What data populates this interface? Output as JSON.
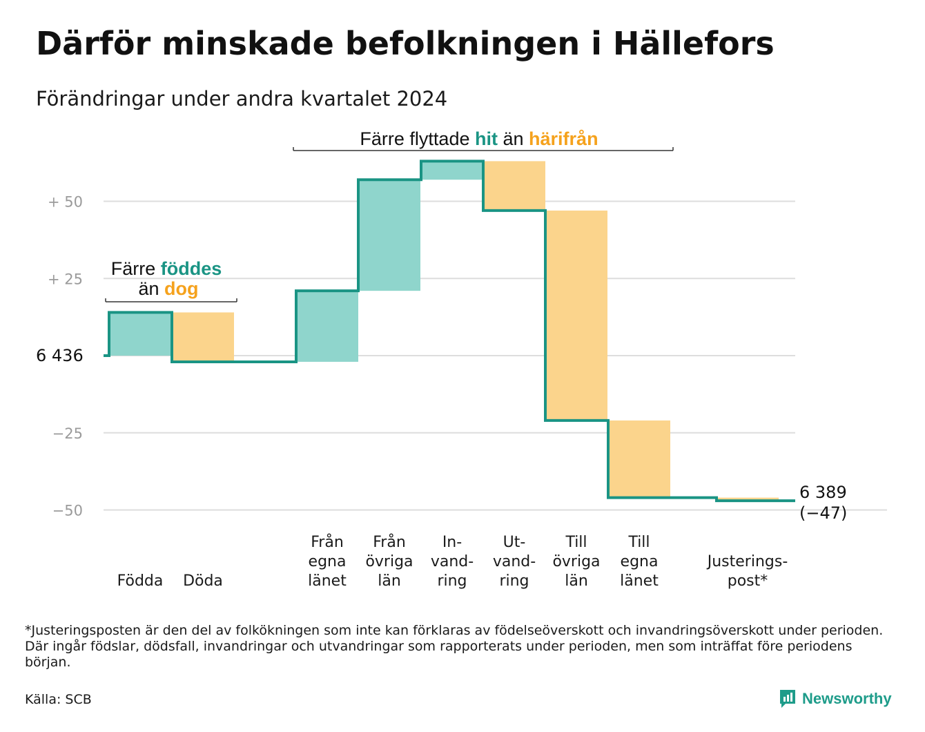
{
  "title": "Därför minskade befolkningen i Hällefors",
  "subtitle": "Förändringar under andra kvartalet 2024",
  "footnote": "*Justeringsposten är den del av folkökningen som inte kan förklaras av födelseöverskott och invandringsöverskott under perioden. Där ingår födslar, dödsfall, invandringar och utvandringar som rapporterats under perioden, men som inträffat före periodens början.",
  "source": "Källa: SCB",
  "brand": "Newsworthy",
  "chart_data": {
    "type": "bar",
    "subtype": "waterfall",
    "start_label": "6 436",
    "end_label": "6 389",
    "end_change_label": "(−47)",
    "start_value": 6436,
    "end_value": 6389,
    "change": -47,
    "ylim": [
      -50,
      60
    ],
    "y_ticks": [
      50,
      25,
      0,
      -25,
      -50
    ],
    "y_tick_labels": [
      "+  50",
      "+  25",
      "6  436",
      "−25",
      "−50"
    ],
    "categories": [
      {
        "lines": [
          "Födda"
        ],
        "value": 14,
        "kind": "in"
      },
      {
        "lines": [
          "Döda"
        ],
        "value": -16,
        "kind": "out"
      },
      {
        "lines": [
          "Från",
          "egna",
          "länet"
        ],
        "value": 23,
        "kind": "in"
      },
      {
        "lines": [
          "Från",
          "övriga",
          "län"
        ],
        "value": 36,
        "kind": "in"
      },
      {
        "lines": [
          "In-",
          "vand-",
          "ring"
        ],
        "value": 6,
        "kind": "in"
      },
      {
        "lines": [
          "Ut-",
          "vand-",
          "ring"
        ],
        "value": -16,
        "kind": "out"
      },
      {
        "lines": [
          "Till",
          "övriga",
          "län"
        ],
        "value": -68,
        "kind": "out"
      },
      {
        "lines": [
          "Till",
          "egna",
          "länet"
        ],
        "value": -25,
        "kind": "out"
      },
      {
        "lines": [
          "Justerings-",
          "post*"
        ],
        "value": -1,
        "kind": "out"
      }
    ],
    "annotations": [
      {
        "group": "born",
        "parts": [
          "Färre ",
          "föddes"
        ],
        "parts2": [
          "än ",
          "dog"
        ]
      },
      {
        "group": "moved",
        "parts": [
          "Färre flyttade ",
          "hit",
          " än ",
          "härifrån"
        ]
      }
    ],
    "colors": {
      "in_fill": "#8fd5cc",
      "out_fill": "#fbd48c",
      "line": "#1a9484",
      "accent_in": "#1a9484",
      "accent_out": "#f5a21d",
      "grid": "#dddddd",
      "tick": "#9a9a9a"
    },
    "grid": true,
    "legend": "none"
  }
}
